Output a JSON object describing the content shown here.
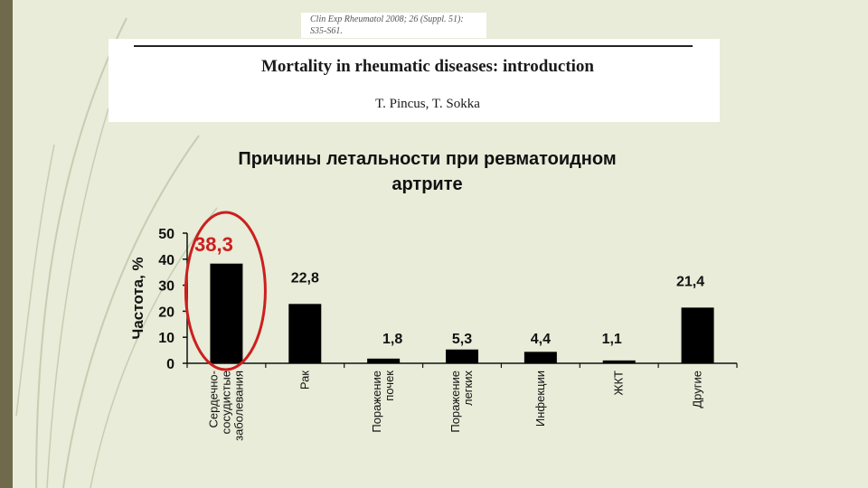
{
  "header": {
    "journal_ref_line1": "Clin Exp Rheumatol 2008; 26 (Suppl. 51):",
    "journal_ref_line2": "S35-S61.",
    "paper_title": "Mortality in rheumatic diseases: introduction",
    "authors": "T. Pincus, T. Sokka"
  },
  "chart_data": {
    "type": "bar",
    "title_line1": "Причины летальности при ревматоидном",
    "title_line2": "артрите",
    "ylabel": "Частота, %",
    "xlabel": "",
    "ylim": [
      0,
      50
    ],
    "yticks": [
      0,
      10,
      20,
      30,
      40,
      50
    ],
    "categories": [
      [
        "Сердечно-",
        "сосудистые",
        "заболевания"
      ],
      [
        "Рак"
      ],
      [
        "Поражение",
        "почек"
      ],
      [
        "Поражение",
        "легких"
      ],
      [
        "Инфекции"
      ],
      [
        "ЖКТ"
      ],
      [
        "Другие"
      ]
    ],
    "values": [
      38.3,
      22.8,
      1.8,
      5.3,
      4.4,
      1.1,
      21.4
    ],
    "value_labels": [
      "38,3",
      "22,8",
      "1,8",
      "5,3",
      "4,4",
      "1,1",
      "21,4"
    ],
    "highlight_index": 0,
    "bar_color": "#000000",
    "highlight_color": "#cc1f1f",
    "grid": false
  }
}
